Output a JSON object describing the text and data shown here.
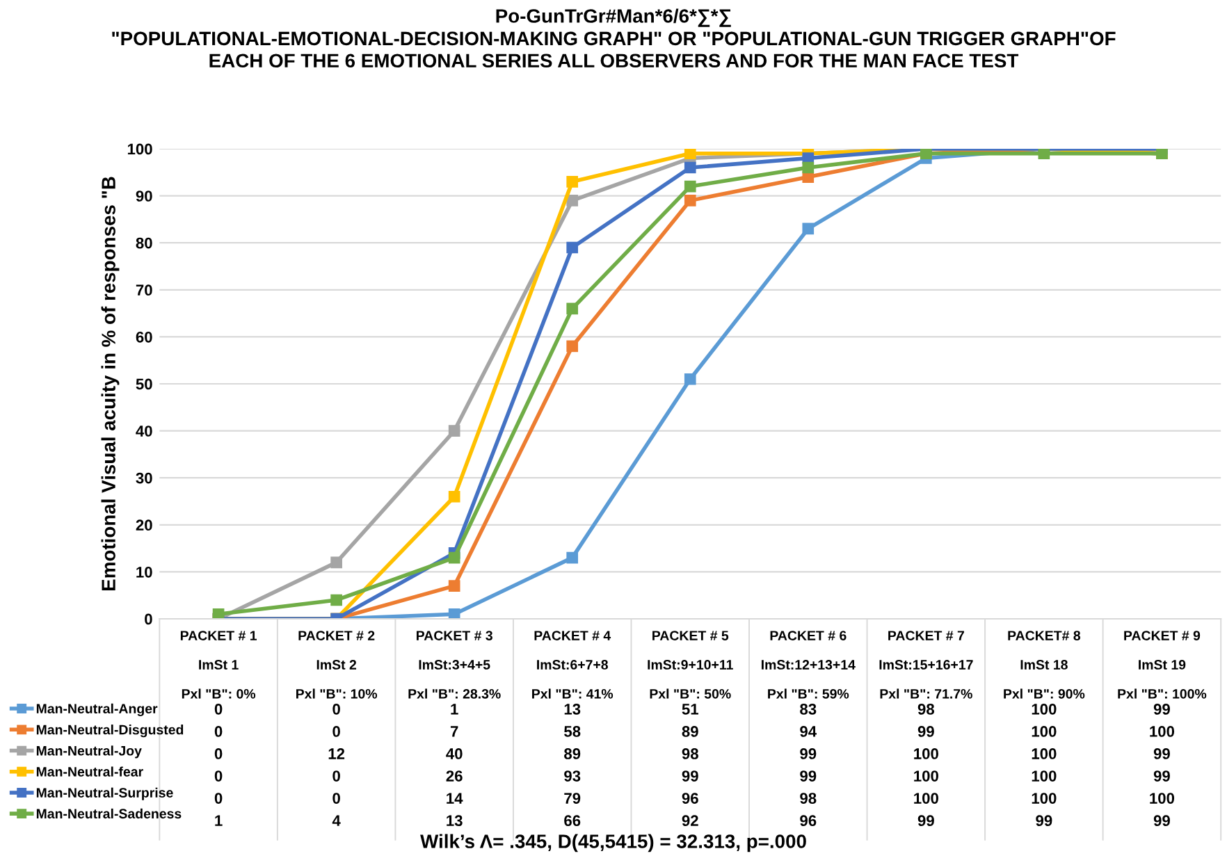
{
  "chart_data": {
    "type": "line",
    "title": "Po-GunTrGr#Man*6/6*∑*∑\n\"POPULATIONAL-EMOTIONAL-DECISION-MAKING GRAPH\" OR \"POPULATIONAL-GUN TRIGGER GRAPH\"OF\nEACH OF THE 6 EMOTIONAL SERIES ALL OBSERVERS AND FOR THE MAN FACE TEST",
    "ylabel": "Emotional Visual acuity in % of responses \"B",
    "categories": [
      "PACKET # 1\n\nImSt 1\n\nPxl \"B\": 0%",
      "PACKET # 2\n\nImSt 2\n\nPxl \"B\": 10%",
      "PACKET # 3\n\nImSt:3+4+5\n\nPxl \"B\": 28.3%",
      "PACKET # 4\n\nImSt:6+7+8\n\nPxl \"B\": 41%",
      "PACKET # 5\n\nImSt:9+10+11\n\nPxl \"B\": 50%",
      "PACKET # 6\n\nImSt:12+13+14\n\nPxl \"B\": 59%",
      "PACKET # 7\n\nImSt:15+16+17\n\nPxl \"B\": 71.7%",
      "PACKET# 8\n\nImSt 18\n\nPxl \"B\": 90%",
      "PACKET # 9\n\nImSt 19\n\nPxl \"B\": 100%"
    ],
    "series": [
      {
        "name": "Man-Neutral-Anger",
        "color": "#5b9bd5",
        "values": [
          0,
          0,
          1,
          13,
          51,
          83,
          98,
          100,
          99
        ]
      },
      {
        "name": "Man-Neutral-Disgusted",
        "color": "#ed7d31",
        "values": [
          0,
          0,
          7,
          58,
          89,
          94,
          99,
          100,
          100
        ]
      },
      {
        "name": "Man-Neutral-Joy",
        "color": "#a5a5a5",
        "values": [
          0,
          12,
          40,
          89,
          98,
          99,
          100,
          100,
          99
        ]
      },
      {
        "name": "Man-Neutral-fear",
        "color": "#ffc000",
        "values": [
          0,
          0,
          26,
          93,
          99,
          99,
          100,
          100,
          99
        ]
      },
      {
        "name": "Man-Neutral-Surprise",
        "color": "#4472c4",
        "values": [
          0,
          0,
          14,
          79,
          96,
          98,
          100,
          100,
          100
        ]
      },
      {
        "name": "Man-Neutral-Sadeness",
        "color": "#70ad47",
        "values": [
          1,
          4,
          13,
          66,
          92,
          96,
          99,
          99,
          99
        ]
      }
    ],
    "ylim": [
      0,
      100
    ],
    "yticks": [
      0,
      10,
      20,
      30,
      40,
      50,
      60,
      70,
      80,
      90,
      100
    ],
    "grid": "y",
    "legend": "bottom left",
    "marker": "square",
    "line_style": "solid",
    "data_labels": true,
    "annotations": [
      "Wilk’s Λ= .345, D(45,5415) = 32.313, p=.000"
    ]
  }
}
